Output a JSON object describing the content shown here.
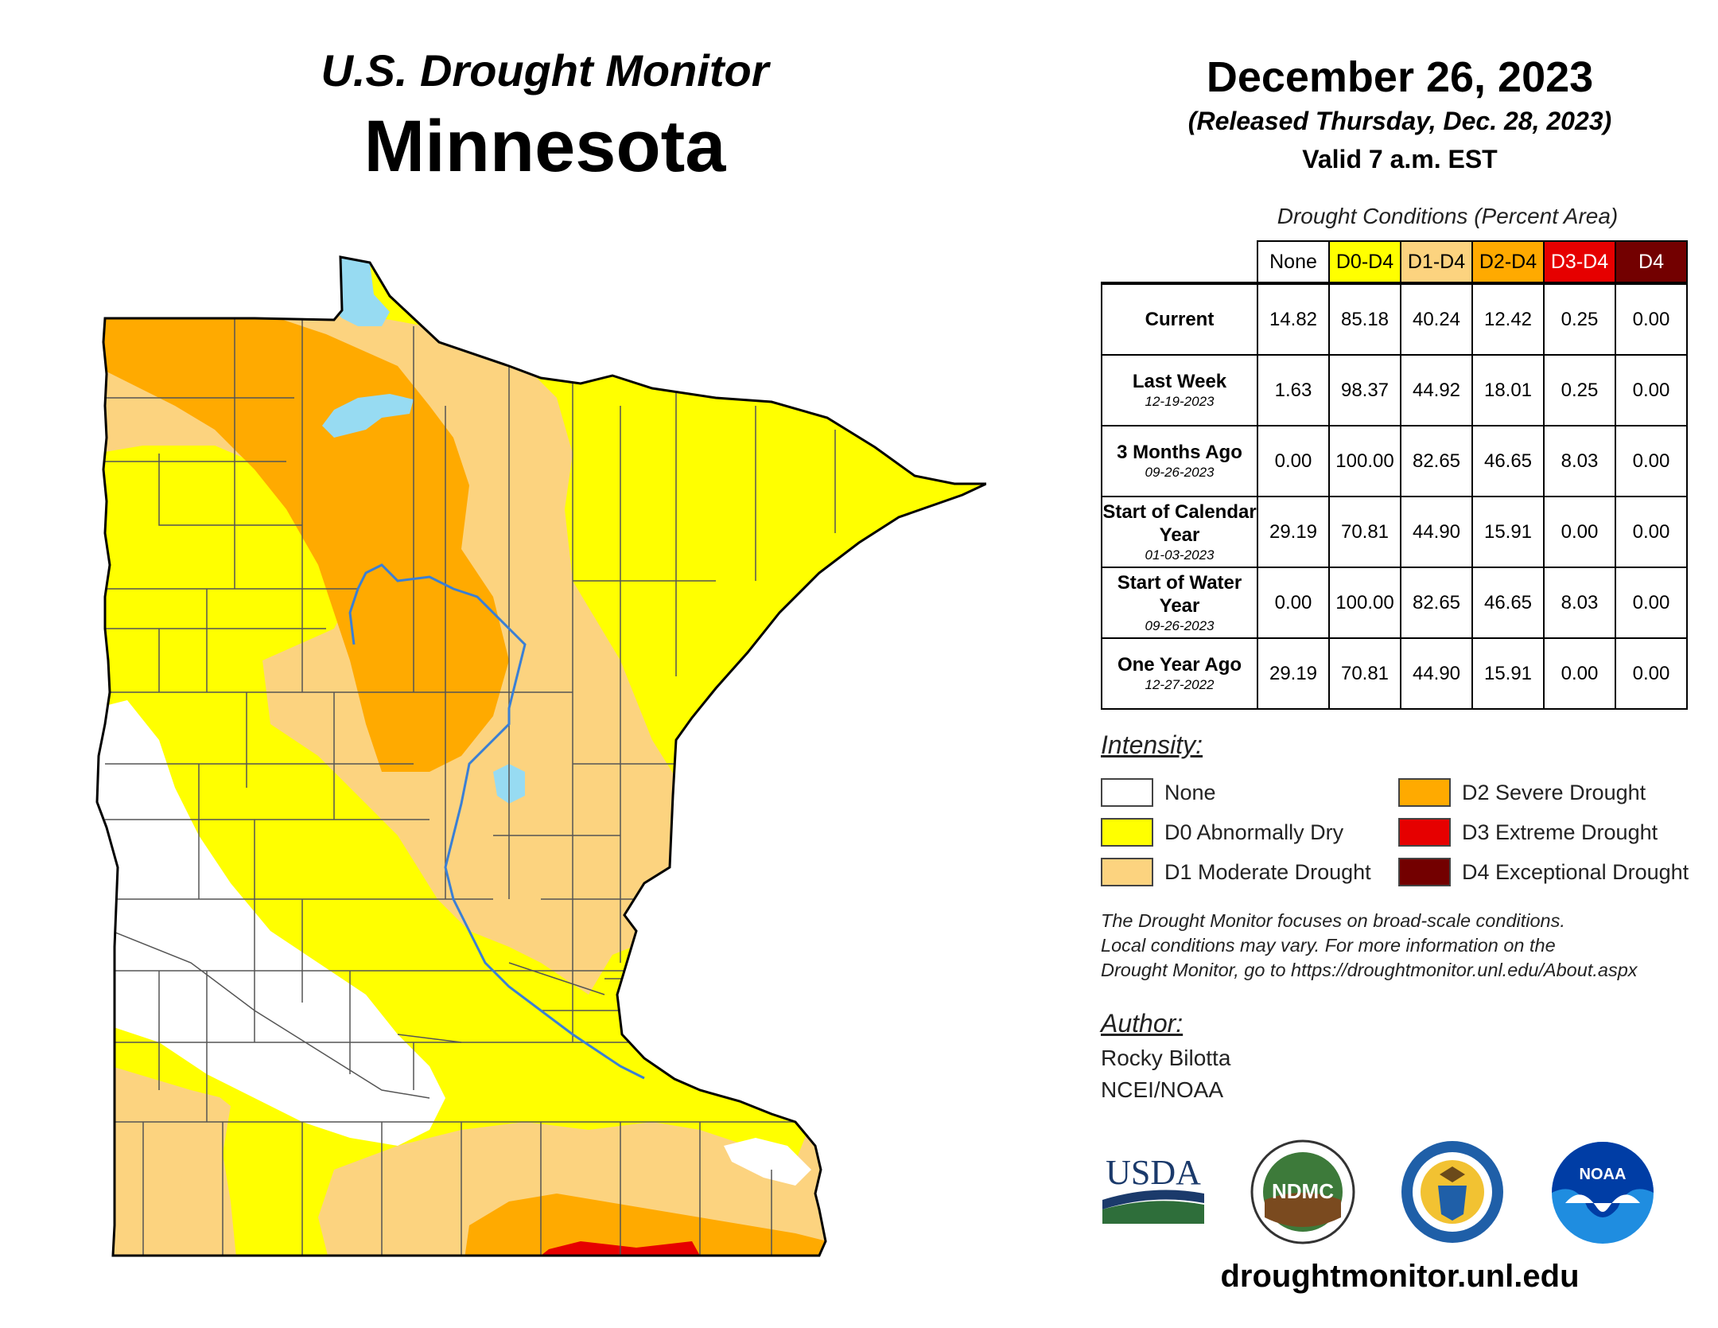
{
  "header": {
    "subtitle": "U.S. Drought Monitor",
    "state": "Minnesota",
    "date": "December 26, 2023",
    "released": "(Released Thursday, Dec. 28, 2023)",
    "valid": "Valid 7 a.m. EST"
  },
  "table": {
    "caption": "Drought Conditions (Percent Area)",
    "columns": [
      {
        "label": "None",
        "color": "#ffffff",
        "text_color": "#000000"
      },
      {
        "label": "D0-D4",
        "color": "#ffff00",
        "text_color": "#000000"
      },
      {
        "label": "D1-D4",
        "color": "#fcd37f",
        "text_color": "#000000"
      },
      {
        "label": "D2-D4",
        "color": "#ffaa00",
        "text_color": "#000000"
      },
      {
        "label": "D3-D4",
        "color": "#e60000",
        "text_color": "#ffffff"
      },
      {
        "label": "D4",
        "color": "#730000",
        "text_color": "#ffffff"
      }
    ],
    "rows": [
      {
        "label": "Current",
        "date": "",
        "values": [
          "14.82",
          "85.18",
          "40.24",
          "12.42",
          "0.25",
          "0.00"
        ]
      },
      {
        "label": "Last Week",
        "date": "12-19-2023",
        "values": [
          "1.63",
          "98.37",
          "44.92",
          "18.01",
          "0.25",
          "0.00"
        ]
      },
      {
        "label": "3 Months Ago",
        "date": "09-26-2023",
        "values": [
          "0.00",
          "100.00",
          "82.65",
          "46.65",
          "8.03",
          "0.00"
        ]
      },
      {
        "label": "Start of Calendar Year",
        "date": "01-03-2023",
        "values": [
          "29.19",
          "70.81",
          "44.90",
          "15.91",
          "0.00",
          "0.00"
        ]
      },
      {
        "label": "Start of Water Year",
        "date": "09-26-2023",
        "values": [
          "0.00",
          "100.00",
          "82.65",
          "46.65",
          "8.03",
          "0.00"
        ]
      },
      {
        "label": "One Year Ago",
        "date": "12-27-2022",
        "values": [
          "29.19",
          "70.81",
          "44.90",
          "15.91",
          "0.00",
          "0.00"
        ]
      }
    ]
  },
  "legend": {
    "title": "Intensity:",
    "items": [
      {
        "label": "None",
        "color": "#ffffff"
      },
      {
        "label": "D0 Abnormally Dry",
        "color": "#ffff00"
      },
      {
        "label": "D1 Moderate Drought",
        "color": "#fcd37f"
      },
      {
        "label": "D2 Severe Drought",
        "color": "#ffaa00"
      },
      {
        "label": "D3 Extreme Drought",
        "color": "#e60000"
      },
      {
        "label": "D4 Exceptional Drought",
        "color": "#730000"
      }
    ]
  },
  "note": {
    "line1": "The Drought Monitor focuses on broad-scale conditions.",
    "line2": "Local conditions may vary. For more information on the",
    "line3": "Drought Monitor, go to https://droughtmonitor.unl.edu/About.aspx"
  },
  "author": {
    "title": "Author:",
    "name": "Rocky Bilotta",
    "org": "NCEI/NOAA"
  },
  "logos": {
    "usda": "USDA",
    "ndmc": "NDMC",
    "noaa": "NOAA"
  },
  "footer_url": "droughtmonitor.unl.edu",
  "map_colors": {
    "none": "#ffffff",
    "d0": "#ffff00",
    "d1": "#fcd37f",
    "d2": "#ffaa00",
    "d3": "#e60000",
    "water": "#97dbf2",
    "river": "#3a7fd5"
  }
}
